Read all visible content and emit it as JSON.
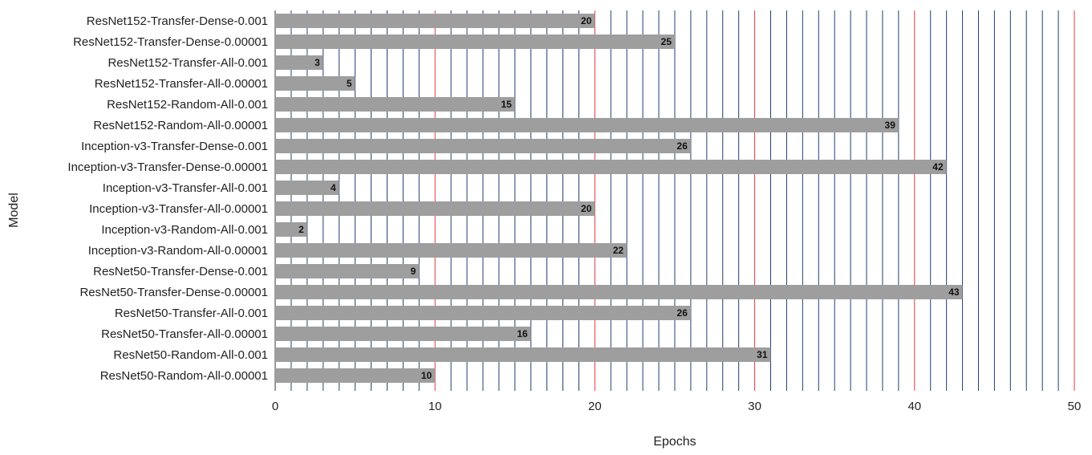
{
  "chart_data": {
    "type": "bar",
    "orientation": "horizontal",
    "title": "",
    "xlabel": "Epochs",
    "ylabel": "Model",
    "xlim": [
      0,
      50
    ],
    "xticks": [
      "0",
      "10",
      "20",
      "30",
      "40",
      "50"
    ],
    "grid": true,
    "categories": [
      "ResNet152-Transfer-Dense-0.001",
      "ResNet152-Transfer-Dense-0.00001",
      "ResNet152-Transfer-All-0.001",
      "ResNet152-Transfer-All-0.00001",
      "ResNet152-Random-All-0.001",
      "ResNet152-Random-All-0.00001",
      "Inception-v3-Transfer-Dense-0.001",
      "Inception-v3-Transfer-Dense-0.00001",
      "Inception-v3-Transfer-All-0.001",
      "Inception-v3-Transfer-All-0.00001",
      "Inception-v3-Random-All-0.001",
      "Inception-v3-Random-All-0.00001",
      "ResNet50-Transfer-Dense-0.001",
      "ResNet50-Transfer-Dense-0.00001",
      "ResNet50-Transfer-All-0.001",
      "ResNet50-Transfer-All-0.00001",
      "ResNet50-Random-All-0.001",
      "ResNet50-Random-All-0.00001"
    ],
    "values": [
      20,
      25,
      3,
      5,
      15,
      39,
      26,
      42,
      4,
      20,
      2,
      22,
      9,
      43,
      26,
      16,
      31,
      10
    ],
    "colors": {
      "bar": "#9e9e9e",
      "minor_grid": "#1f3f73",
      "major_grid": "#e03b3b"
    }
  }
}
